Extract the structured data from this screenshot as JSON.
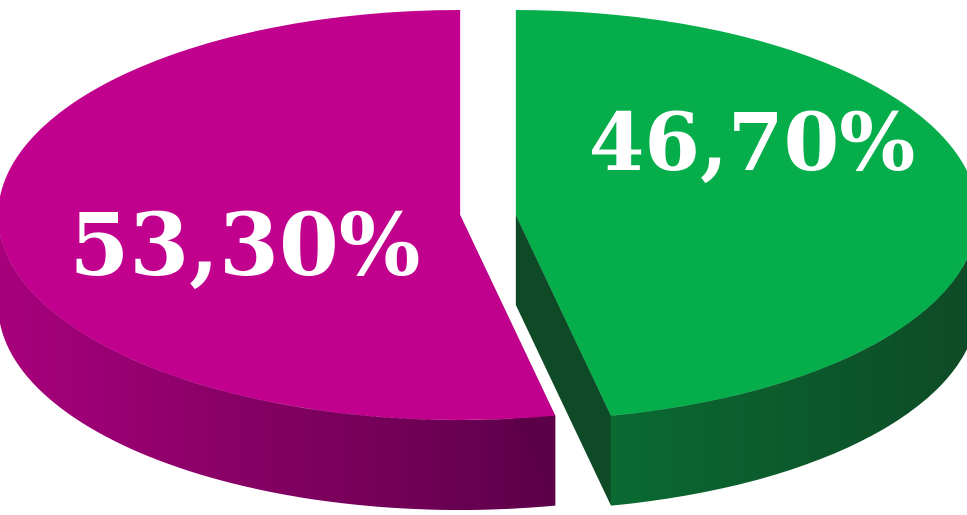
{
  "chart_data": {
    "type": "pie",
    "style": "3d",
    "slices": [
      {
        "label": "53,30%",
        "value": 53.3,
        "color": "#c2008e",
        "side_color_dark": "#5c0048",
        "side_color_light": "#a8007c"
      },
      {
        "label": "46,70%",
        "value": 46.7,
        "color": "#05ad4b",
        "side_color_dark": "#0e4a25",
        "side_color_light": "#0a6a32"
      }
    ],
    "legend": "none",
    "exploded": true
  }
}
